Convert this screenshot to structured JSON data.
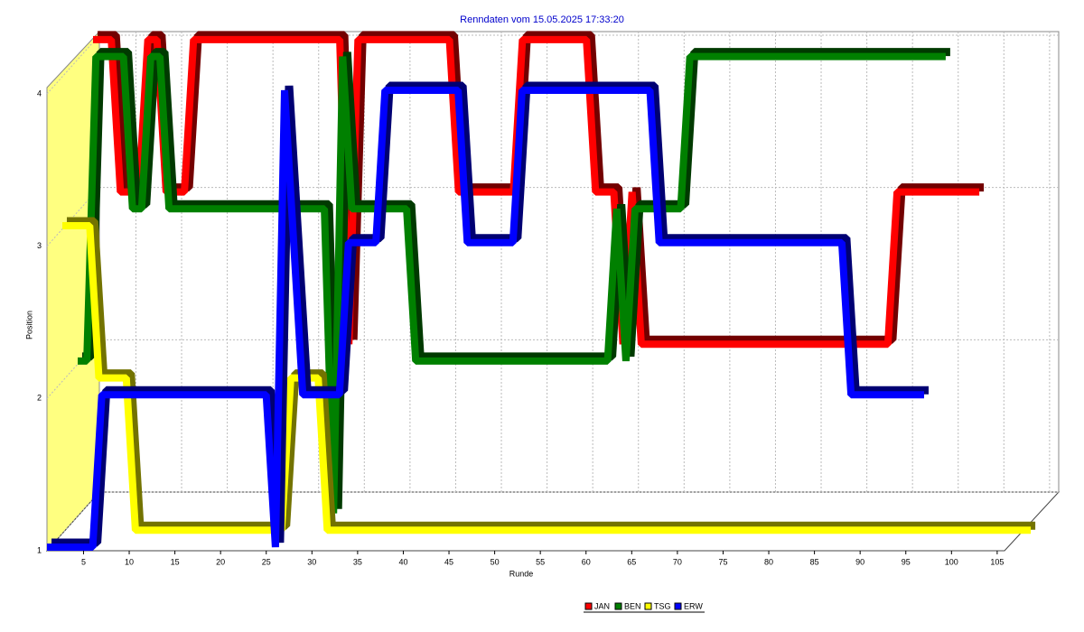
{
  "chart_data": {
    "type": "line3d",
    "title": "Renndaten vom 15.05.2025 17:33:20",
    "xlabel": "Runde",
    "ylabel": "Position",
    "x": [
      1,
      2,
      3,
      4,
      5,
      6,
      7,
      8,
      9,
      10,
      11,
      12,
      13,
      14,
      15,
      16,
      17,
      18,
      19,
      20,
      21,
      22,
      23,
      24,
      25,
      26,
      27,
      28,
      29,
      30,
      31,
      32,
      33,
      34,
      35,
      36,
      37,
      38,
      39,
      40,
      41,
      42,
      43,
      44,
      45,
      46,
      47,
      48,
      49,
      50,
      51,
      52,
      53,
      54,
      55,
      56,
      57,
      58,
      59,
      60,
      61,
      62,
      63,
      64,
      65,
      66,
      67,
      68,
      69,
      70,
      71,
      72,
      73,
      74,
      75,
      76,
      77,
      78,
      79,
      80,
      81,
      82,
      83,
      84,
      85,
      86,
      87,
      88,
      89,
      90,
      91,
      92,
      93,
      94,
      95,
      96,
      97,
      98,
      99,
      100,
      101,
      102,
      103,
      104,
      105,
      106,
      107
    ],
    "xlim": [
      1,
      106
    ],
    "xticks": [
      5,
      10,
      15,
      20,
      25,
      30,
      35,
      40,
      45,
      50,
      55,
      60,
      65,
      70,
      75,
      80,
      85,
      90,
      95,
      100,
      105
    ],
    "ylim": [
      1,
      4
    ],
    "yticks": [
      1,
      2,
      3,
      4
    ],
    "grid": true,
    "series": [
      {
        "name": "JAN",
        "color": "#ff0000",
        "values": [
          4,
          4,
          4,
          3,
          3,
          3,
          4,
          4,
          3,
          3,
          3,
          4,
          4,
          4,
          4,
          4,
          4,
          4,
          4,
          4,
          4,
          4,
          4,
          4,
          4,
          4,
          4,
          4,
          2,
          4,
          4,
          4,
          4,
          4,
          4,
          4,
          4,
          4,
          4,
          4,
          3,
          3,
          3,
          3,
          3,
          3,
          3,
          4,
          4,
          4,
          4,
          4,
          4,
          4,
          4,
          3,
          3,
          3,
          2,
          3,
          2,
          2,
          2,
          2,
          2,
          2,
          2,
          2,
          2,
          2,
          2,
          2,
          2,
          2,
          2,
          2,
          2,
          2,
          2,
          2,
          2,
          2,
          2,
          2,
          2,
          2,
          2,
          2,
          3,
          3,
          3,
          3,
          3,
          3,
          3,
          3,
          3,
          3,
          null,
          null,
          null,
          null,
          null,
          null,
          null,
          null,
          null
        ]
      },
      {
        "name": "BEN",
        "color": "#008000",
        "values": [
          2,
          2,
          4,
          4,
          4,
          4,
          3,
          3,
          4,
          4,
          3,
          3,
          3,
          3,
          3,
          3,
          3,
          3,
          3,
          3,
          3,
          3,
          3,
          3,
          3,
          3,
          3,
          3,
          1,
          4,
          3,
          3,
          3,
          3,
          3,
          3,
          3,
          2,
          2,
          2,
          2,
          2,
          2,
          2,
          2,
          2,
          2,
          2,
          2,
          2,
          2,
          2,
          2,
          2,
          2,
          2,
          2,
          2,
          2,
          3,
          2,
          3,
          3,
          3,
          3,
          3,
          3,
          4,
          4,
          4,
          4,
          4,
          4,
          4,
          4,
          4,
          4,
          4,
          4,
          4,
          4,
          4,
          4,
          4,
          4,
          4,
          4,
          4,
          4,
          4,
          4,
          4,
          4,
          4,
          4,
          4,
          null,
          null,
          null,
          null,
          null,
          null,
          null,
          null,
          null,
          null,
          null
        ]
      },
      {
        "name": "TSG",
        "color": "#ffff00",
        "values": [
          3,
          3,
          3,
          3,
          2,
          2,
          2,
          2,
          1,
          1,
          1,
          1,
          1,
          1,
          1,
          1,
          1,
          1,
          1,
          1,
          1,
          1,
          1,
          1,
          1,
          2,
          2,
          2,
          2,
          1,
          1,
          1,
          1,
          1,
          1,
          1,
          1,
          1,
          1,
          1,
          1,
          1,
          1,
          1,
          1,
          1,
          1,
          1,
          1,
          1,
          1,
          1,
          1,
          1,
          1,
          1,
          1,
          1,
          1,
          1,
          1,
          1,
          1,
          1,
          1,
          1,
          1,
          1,
          1,
          1,
          1,
          1,
          1,
          1,
          1,
          1,
          1,
          1,
          1,
          1,
          1,
          1,
          1,
          1,
          1,
          1,
          1,
          1,
          1,
          1,
          1,
          1,
          1,
          1,
          1,
          1,
          1,
          1,
          1,
          1,
          1,
          1,
          1,
          1,
          1,
          1,
          1
        ]
      },
      {
        "name": "ERW",
        "color": "#0000ff",
        "values": [
          1,
          1,
          1,
          1,
          1,
          1,
          2,
          2,
          2,
          2,
          2,
          2,
          2,
          2,
          2,
          2,
          2,
          2,
          2,
          2,
          2,
          2,
          2,
          2,
          2,
          1,
          4,
          3,
          2,
          2,
          2,
          2,
          2,
          3,
          3,
          3,
          3,
          4,
          4,
          4,
          4,
          4,
          4,
          4,
          4,
          4,
          3,
          3,
          3,
          3,
          3,
          3,
          4,
          4,
          4,
          4,
          4,
          4,
          4,
          4,
          4,
          4,
          4,
          4,
          4,
          4,
          4,
          3,
          3,
          3,
          3,
          3,
          3,
          3,
          3,
          3,
          3,
          3,
          3,
          3,
          3,
          3,
          3,
          3,
          3,
          3,
          3,
          3,
          2,
          2,
          2,
          2,
          2,
          2,
          2,
          2,
          2,
          null,
          null,
          null,
          null,
          null,
          null,
          null,
          null,
          null,
          null
        ]
      }
    ]
  }
}
